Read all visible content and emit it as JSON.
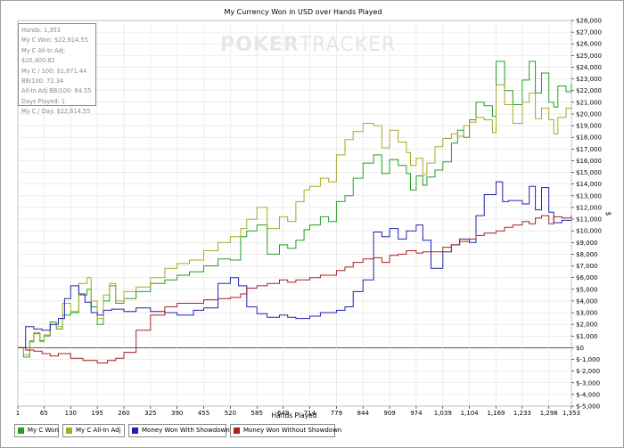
{
  "window": {
    "title": "My Currency Won in USD over Hands Played",
    "watermark_bold": "POKER",
    "watermark_light": "TRACKER"
  },
  "stats": {
    "hands": "Hands: 1,353",
    "won": "My C Won: $22,614.55",
    "allin": "My C All-In Adj: $20,400.82",
    "per100": "My C / 100: $1,671.44",
    "bb100": "BB/100: 72.34",
    "allinbb": "All-In Adj BB/100: 64.55",
    "days": "Days Played: 1",
    "perday": "My C / Day: $22,614.55"
  },
  "legend": [
    {
      "label": "My C Won",
      "color": "#22a022"
    },
    {
      "label": "My C All-In Adj",
      "color": "#a8a82a"
    },
    {
      "label": "Money Won With Showdown",
      "color": "#2222b0"
    },
    {
      "label": "Money Won Without Showdown",
      "color": "#a82020"
    }
  ],
  "chart_data": {
    "type": "line",
    "title": "My Currency Won in USD over Hands Played",
    "xlabel": "Hands Played",
    "ylabel": "$",
    "xlim": [
      1,
      1353
    ],
    "ylim": [
      -5000,
      28000
    ],
    "x_ticks": [
      "1",
      "65",
      "130",
      "195",
      "260",
      "325",
      "390",
      "455",
      "520",
      "585",
      "649",
      "714",
      "779",
      "844",
      "909",
      "974",
      "1,039",
      "1,104",
      "1,169",
      "1,233",
      "1,298",
      "1,353"
    ],
    "y_ticks": [
      "$28,000",
      "$27,000",
      "$26,000",
      "$25,000",
      "$24,000",
      "$23,000",
      "$22,000",
      "$21,000",
      "$20,000",
      "$19,000",
      "$18,000",
      "$17,000",
      "$16,000",
      "$15,000",
      "$14,000",
      "$13,000",
      "$12,000",
      "$11,000",
      "$10,000",
      "$9,000",
      "$8,000",
      "$7,000",
      "$6,000",
      "$5,000",
      "$4,000",
      "$3,000",
      "$2,000",
      "$1,000",
      "$0",
      "$-1,000",
      "$-2,000",
      "$-3,000",
      "$-4,000",
      "$-5,000"
    ],
    "grid": true,
    "series": [
      {
        "name": "My C Won",
        "color": "#22a022",
        "x": [
          1,
          15,
          30,
          40,
          55,
          65,
          80,
          95,
          110,
          130,
          150,
          170,
          180,
          195,
          210,
          225,
          240,
          260,
          290,
          325,
          360,
          390,
          420,
          455,
          490,
          520,
          545,
          560,
          585,
          610,
          640,
          660,
          680,
          700,
          714,
          740,
          760,
          779,
          800,
          820,
          844,
          870,
          890,
          909,
          930,
          950,
          960,
          974,
          990,
          1000,
          1020,
          1039,
          1060,
          1075,
          1090,
          1104,
          1120,
          1140,
          1160,
          1169,
          1190,
          1210,
          1233,
          1250,
          1265,
          1280,
          1298,
          1310,
          1320,
          1340,
          1353
        ],
        "values": [
          0,
          -800,
          500,
          1200,
          600,
          1000,
          2200,
          1600,
          2800,
          3000,
          4500,
          5000,
          3500,
          2000,
          4000,
          5300,
          3800,
          4200,
          4800,
          5500,
          5800,
          6200,
          6500,
          7000,
          7600,
          7500,
          9500,
          10000,
          10500,
          8000,
          8800,
          8500,
          9200,
          10100,
          10500,
          11200,
          10800,
          12500,
          13000,
          14500,
          15800,
          16500,
          14900,
          16100,
          15600,
          14900,
          13500,
          14700,
          13900,
          14600,
          15200,
          15900,
          17500,
          18600,
          18000,
          19500,
          21000,
          20700,
          19800,
          24500,
          22000,
          20800,
          22900,
          24500,
          21800,
          23500,
          21000,
          20600,
          22400,
          21900,
          22600
        ]
      },
      {
        "name": "My C All-In Adj",
        "color": "#a8a82a",
        "x": [
          1,
          15,
          30,
          40,
          55,
          65,
          80,
          95,
          110,
          130,
          150,
          170,
          180,
          195,
          210,
          225,
          240,
          260,
          290,
          325,
          360,
          390,
          420,
          455,
          490,
          520,
          545,
          560,
          585,
          610,
          640,
          660,
          680,
          700,
          714,
          740,
          760,
          779,
          800,
          820,
          844,
          870,
          890,
          909,
          930,
          950,
          960,
          974,
          990,
          1000,
          1020,
          1039,
          1060,
          1075,
          1090,
          1104,
          1120,
          1140,
          1160,
          1169,
          1190,
          1210,
          1233,
          1250,
          1265,
          1280,
          1298,
          1310,
          1320,
          1340,
          1353
        ],
        "values": [
          0,
          -600,
          600,
          1300,
          500,
          1100,
          2000,
          1800,
          3800,
          3100,
          5500,
          6000,
          4000,
          2500,
          4500,
          5500,
          4000,
          4800,
          5200,
          6000,
          6800,
          7200,
          7500,
          8300,
          9000,
          9500,
          10200,
          11000,
          12000,
          10200,
          11200,
          10800,
          12500,
          13500,
          13800,
          14500,
          14200,
          16500,
          17800,
          18500,
          19200,
          19000,
          17100,
          18600,
          17600,
          16700,
          15600,
          16200,
          14800,
          15800,
          17200,
          17900,
          18300,
          18100,
          19000,
          19300,
          19700,
          19500,
          18400,
          22500,
          20800,
          19200,
          21000,
          21800,
          19600,
          20500,
          19500,
          18300,
          19700,
          20500,
          20400
        ]
      },
      {
        "name": "Money Won With Showdown",
        "color": "#2222b0",
        "x": [
          1,
          20,
          40,
          60,
          80,
          100,
          115,
          130,
          150,
          165,
          180,
          195,
          210,
          230,
          260,
          290,
          325,
          360,
          390,
          430,
          455,
          490,
          520,
          540,
          560,
          585,
          610,
          640,
          660,
          680,
          714,
          740,
          779,
          800,
          820,
          844,
          870,
          890,
          909,
          930,
          950,
          974,
          990,
          1010,
          1039,
          1060,
          1080,
          1104,
          1120,
          1140,
          1169,
          1185,
          1200,
          1233,
          1250,
          1265,
          1280,
          1298,
          1310,
          1330,
          1353
        ],
        "values": [
          0,
          1800,
          1600,
          1500,
          2000,
          2500,
          4200,
          5300,
          4600,
          3900,
          3000,
          2800,
          3200,
          3300,
          3100,
          3400,
          3100,
          3000,
          2800,
          3200,
          3400,
          5500,
          6000,
          5300,
          3500,
          2900,
          2600,
          2800,
          2600,
          2500,
          2700,
          3000,
          3200,
          3500,
          4800,
          5800,
          9900,
          9500,
          10200,
          9300,
          10000,
          10500,
          9200,
          6800,
          8200,
          8800,
          9300,
          9000,
          11300,
          13100,
          14200,
          12500,
          12600,
          12300,
          13800,
          11800,
          13700,
          11600,
          10700,
          10900,
          10900
        ]
      },
      {
        "name": "Money Won Without Showdown",
        "color": "#a82020",
        "x": [
          1,
          20,
          40,
          60,
          80,
          100,
          130,
          160,
          195,
          220,
          240,
          260,
          290,
          325,
          360,
          390,
          420,
          455,
          490,
          520,
          545,
          560,
          585,
          610,
          640,
          660,
          680,
          714,
          740,
          779,
          800,
          820,
          844,
          870,
          890,
          909,
          930,
          950,
          974,
          990,
          1010,
          1039,
          1060,
          1080,
          1104,
          1120,
          1140,
          1169,
          1190,
          1210,
          1233,
          1250,
          1265,
          1280,
          1298,
          1310,
          1330,
          1353
        ],
        "values": [
          0,
          -200,
          -300,
          -500,
          -700,
          -500,
          -900,
          -1100,
          -1300,
          -1100,
          -900,
          -400,
          1500,
          2800,
          3500,
          3800,
          3800,
          4100,
          4200,
          4300,
          4600,
          5100,
          5300,
          5500,
          5800,
          5600,
          5800,
          6000,
          6200,
          6600,
          6900,
          7300,
          7600,
          7700,
          7300,
          7900,
          8000,
          8300,
          8100,
          8200,
          8200,
          8600,
          8800,
          9100,
          9300,
          9600,
          9800,
          10000,
          10300,
          10500,
          10800,
          10600,
          11100,
          11300,
          10600,
          11200,
          11100,
          11300
        ]
      }
    ]
  }
}
